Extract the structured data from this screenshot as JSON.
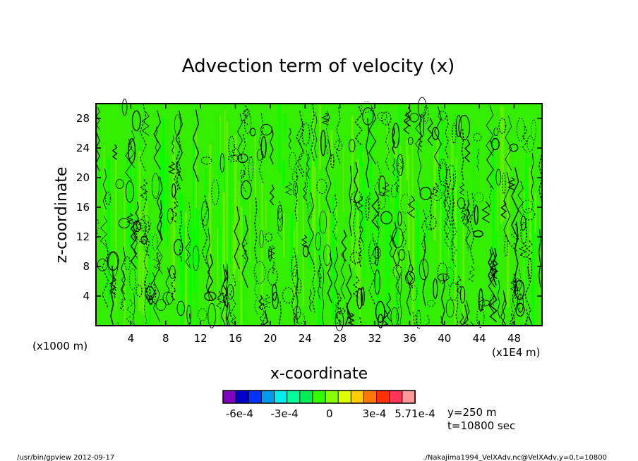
{
  "chart_data": {
    "type": "heatmap",
    "title": "Advection term of velocity (x)",
    "xlabel": "x-coordinate",
    "ylabel": "z-coordinate",
    "x_unit": "(x1000 m)",
    "x_scale_note": "(x1E4 m)",
    "xlim": [
      0,
      51.2
    ],
    "ylim": [
      0,
      30
    ],
    "x_ticks": [
      "4",
      "8",
      "12",
      "16",
      "20",
      "24",
      "28",
      "32",
      "36",
      "40",
      "44",
      "48"
    ],
    "y_ticks": [
      "4",
      "8",
      "12",
      "16",
      "20",
      "24",
      "28"
    ],
    "x_tick_values": [
      4,
      8,
      12,
      16,
      20,
      24,
      28,
      32,
      36,
      40,
      44,
      48
    ],
    "y_tick_values": [
      4,
      8,
      12,
      16,
      20,
      24,
      28
    ],
    "fill_colors": [
      "#00ff00",
      "#66ee00"
    ],
    "contour_color": "#000000",
    "colorbar": {
      "colors": [
        "#7f00bf",
        "#0000cc",
        "#0033ff",
        "#0099ee",
        "#00eeee",
        "#00ff99",
        "#00ee55",
        "#33ff00",
        "#88ff00",
        "#ddff00",
        "#ffcc00",
        "#ff7700",
        "#ff3300",
        "#ff3355",
        "#ff9999"
      ],
      "labels": [
        "-6e-4",
        "-3e-4",
        "0",
        "3e-4",
        "5.71e-4"
      ],
      "label_positions": [
        -0.0006,
        -0.0003,
        0,
        0.0003,
        0.000571
      ],
      "range": [
        -0.00071,
        0.000571
      ]
    },
    "annotations": [
      "y=250 m",
      "t=10800 sec"
    ]
  },
  "footer": {
    "left": "/usr/bin/gpview  2012-09-17",
    "right": "./Nakajima1994_VelXAdv.nc@VelXAdv,y=0,t=10800"
  }
}
